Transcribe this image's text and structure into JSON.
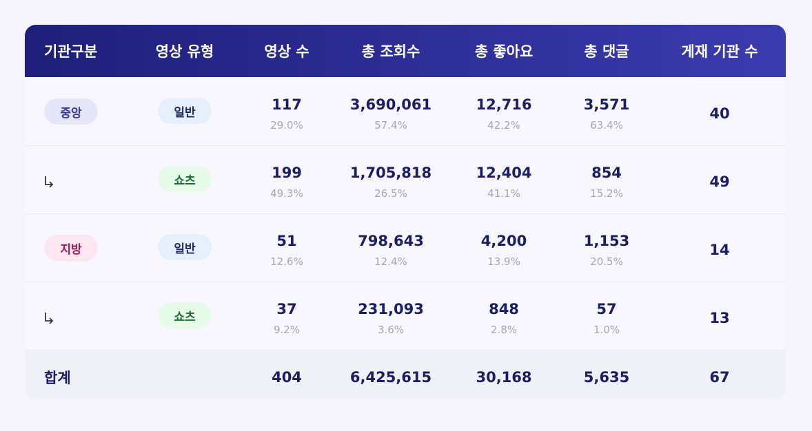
{
  "table": {
    "header": [
      "기관구분",
      "영상 유형",
      "영상 수",
      "총 조회수",
      "총 좋아요",
      "총 댓글",
      "게재 기관 수"
    ],
    "rows": [
      {
        "group": "중앙",
        "type": "일반",
        "cells": [
          [
            "117",
            "29.0%"
          ],
          [
            "3,690,061",
            "57.4%"
          ],
          [
            "12,716",
            "42.2%"
          ],
          [
            "3,571",
            "63.4%"
          ]
        ],
        "orgs": "40"
      },
      {
        "type": "쇼츠",
        "cells": [
          [
            "199",
            "49.3%"
          ],
          [
            "1,705,818",
            "26.5%"
          ],
          [
            "12,404",
            "41.1%"
          ],
          [
            "854",
            "15.2%"
          ]
        ],
        "orgs": "49"
      },
      {
        "group": "지방",
        "type": "일반",
        "cells": [
          [
            "51",
            "12.6%"
          ],
          [
            "798,643",
            "12.4%"
          ],
          [
            "4,200",
            "13.9%"
          ],
          [
            "1,153",
            "20.5%"
          ]
        ],
        "orgs": "14"
      },
      {
        "type": "쇼츠",
        "cells": [
          [
            "37",
            "9.2%"
          ],
          [
            "231,093",
            "3.6%"
          ],
          [
            "848",
            "2.8%"
          ],
          [
            "57",
            "1.0%"
          ]
        ],
        "orgs": "13"
      }
    ],
    "total": {
      "label": "합계",
      "cells": [
        "404",
        "6,425,615",
        "30,168",
        "5,635"
      ],
      "orgs": "67"
    }
  }
}
